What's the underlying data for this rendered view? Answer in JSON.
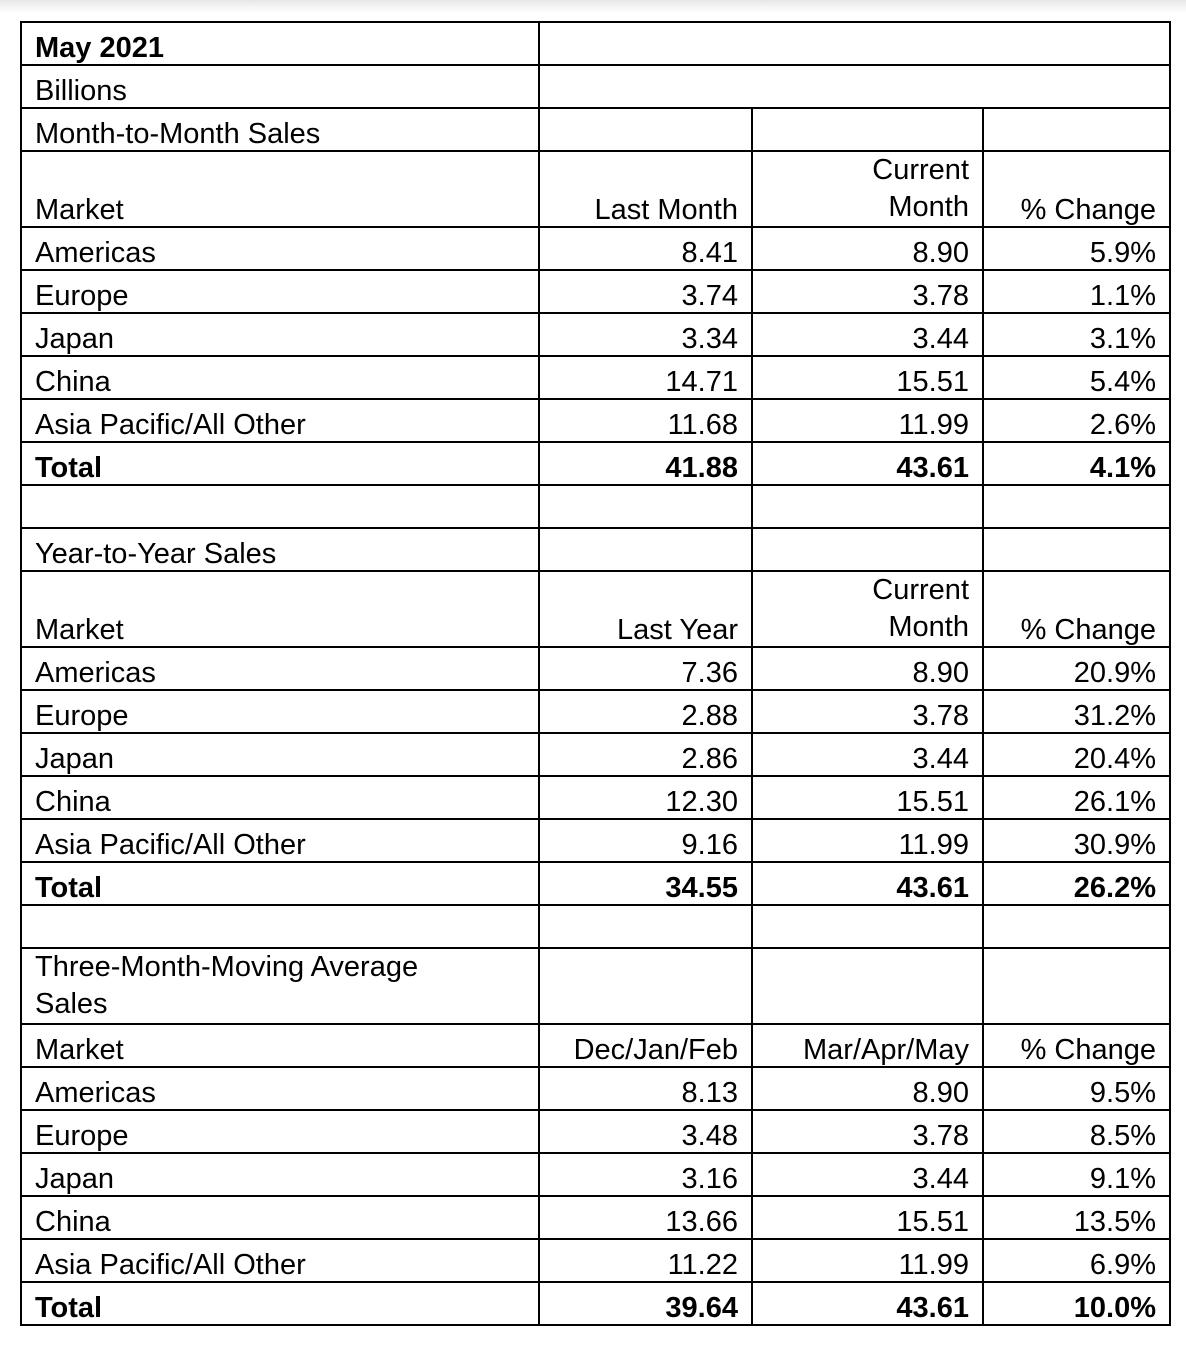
{
  "header": {
    "period": "May 2021",
    "units": "Billions"
  },
  "sections": [
    {
      "title": "Month-to-Month Sales",
      "columns": [
        "Market",
        "Last Month",
        "Current",
        "Month",
        "% Change"
      ],
      "rows": [
        [
          "Americas",
          "8.41",
          "8.90",
          "5.9%"
        ],
        [
          "Europe",
          "3.74",
          "3.78",
          "1.1%"
        ],
        [
          "Japan",
          "3.34",
          "3.44",
          "3.1%"
        ],
        [
          "China",
          "14.71",
          "15.51",
          "5.4%"
        ],
        [
          "Asia Pacific/All Other",
          "11.68",
          "11.99",
          "2.6%"
        ]
      ],
      "total": [
        "Total",
        "41.88",
        "43.61",
        "4.1%"
      ]
    },
    {
      "title": "Year-to-Year Sales",
      "columns": [
        "Market",
        "Last Year",
        "Current",
        "Month",
        "% Change"
      ],
      "rows": [
        [
          "Americas",
          "7.36",
          "8.90",
          "20.9%"
        ],
        [
          "Europe",
          "2.88",
          "3.78",
          "31.2%"
        ],
        [
          "Japan",
          "2.86",
          "3.44",
          "20.4%"
        ],
        [
          "China",
          "12.30",
          "15.51",
          "26.1%"
        ],
        [
          "Asia Pacific/All Other",
          "9.16",
          "11.99",
          "30.9%"
        ]
      ],
      "total": [
        "Total",
        "34.55",
        "43.61",
        "26.2%"
      ]
    },
    {
      "title": "Three-Month-Moving Average Sales",
      "columns": [
        "Market",
        "Dec/Jan/Feb",
        "Mar/Apr/May",
        "% Change"
      ],
      "rows": [
        [
          "Americas",
          "8.13",
          "8.90",
          "9.5%"
        ],
        [
          "Europe",
          "3.48",
          "3.78",
          "8.5%"
        ],
        [
          "Japan",
          "3.16",
          "3.44",
          "9.1%"
        ],
        [
          "China",
          "13.66",
          "15.51",
          "13.5%"
        ],
        [
          "Asia Pacific/All Other",
          "11.22",
          "11.99",
          "6.9%"
        ]
      ],
      "total": [
        "Total",
        "39.64",
        "43.61",
        "10.0%"
      ]
    }
  ]
}
